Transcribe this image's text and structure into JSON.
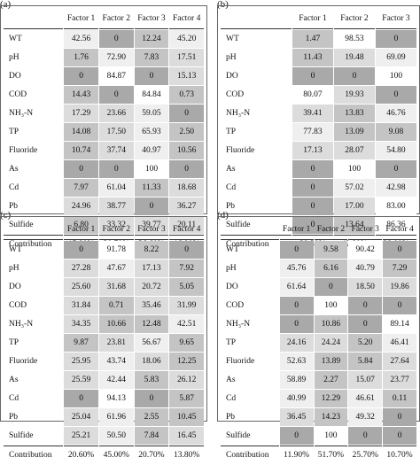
{
  "chart_data": [
    {
      "type": "table",
      "panel_label": "(a)",
      "columns": [
        "Factor 1",
        "Factor 2",
        "Factor 3",
        "Factor 4"
      ],
      "rows": [
        {
          "label": "WT",
          "values": [
            "42.56",
            "0",
            "12.24",
            "45.20"
          ]
        },
        {
          "label": "pH",
          "values": [
            "1.76",
            "72.90",
            "7.83",
            "17.51"
          ]
        },
        {
          "label": "DO",
          "values": [
            "0",
            "84.87",
            "0",
            "15.13"
          ]
        },
        {
          "label": "COD",
          "values": [
            "14.43",
            "0",
            "84.84",
            "0.73"
          ]
        },
        {
          "label": "NH₃-N",
          "values": [
            "17.29",
            "23.66",
            "59.05",
            "0"
          ]
        },
        {
          "label": "TP",
          "values": [
            "14.08",
            "17.50",
            "65.93",
            "2.50"
          ]
        },
        {
          "label": "Fluoride",
          "values": [
            "10.74",
            "37.74",
            "40.97",
            "10.56"
          ]
        },
        {
          "label": "As",
          "values": [
            "0",
            "0",
            "100",
            "0"
          ]
        },
        {
          "label": "Cd",
          "values": [
            "7.97",
            "61.04",
            "11.33",
            "18.68"
          ]
        },
        {
          "label": "Pb",
          "values": [
            "24.96",
            "38.77",
            "0",
            "36.27"
          ]
        },
        {
          "label": "Sulfide",
          "values": [
            "6.80",
            "33.32",
            "39.77",
            "20.11"
          ]
        }
      ],
      "contribution": {
        "label": "Contribution",
        "values": [
          "15.80%",
          "30.70%",
          "36.60%",
          "16.90%"
        ]
      }
    },
    {
      "type": "table",
      "panel_label": "(b)",
      "columns": [
        "Factor 1",
        "Factor 2",
        "Factor 3"
      ],
      "rows": [
        {
          "label": "WT",
          "values": [
            "1.47",
            "98.53",
            "0"
          ]
        },
        {
          "label": "pH",
          "values": [
            "11.43",
            "19.48",
            "69.09"
          ]
        },
        {
          "label": "DO",
          "values": [
            "0",
            "0",
            "100"
          ]
        },
        {
          "label": "COD",
          "values": [
            "80.07",
            "19.93",
            "0"
          ]
        },
        {
          "label": "NH₃-N",
          "values": [
            "39.41",
            "13.83",
            "46.76"
          ]
        },
        {
          "label": "TP",
          "values": [
            "77.83",
            "13.09",
            "9.08"
          ]
        },
        {
          "label": "Fluoride",
          "values": [
            "17.13",
            "28.07",
            "54.80"
          ]
        },
        {
          "label": "As",
          "values": [
            "0",
            "100",
            "0"
          ]
        },
        {
          "label": "Cd",
          "values": [
            "0",
            "57.02",
            "42.98"
          ]
        },
        {
          "label": "Pb",
          "values": [
            "0",
            "17.00",
            "83.00"
          ]
        },
        {
          "label": "Sulfide",
          "values": [
            "0",
            "13.64",
            "86.36"
          ]
        }
      ],
      "contribution": {
        "label": "Contribution",
        "values": [
          "29.30%",
          "42.80%",
          "28.00%"
        ]
      }
    },
    {
      "type": "table",
      "panel_label": "(c)",
      "columns": [
        "Factor 1",
        "Factor 2",
        "Factor 3",
        "Factor 4"
      ],
      "rows": [
        {
          "label": "WT",
          "values": [
            "0",
            "91.78",
            "8.22",
            "0"
          ]
        },
        {
          "label": "pH",
          "values": [
            "27.28",
            "47.67",
            "17.13",
            "7.92"
          ]
        },
        {
          "label": "DO",
          "values": [
            "25.60",
            "31.68",
            "20.72",
            "5.05"
          ]
        },
        {
          "label": "COD",
          "values": [
            "31.84",
            "0.71",
            "35.46",
            "31.99"
          ]
        },
        {
          "label": "NH₃-N",
          "values": [
            "34.35",
            "10.66",
            "12.48",
            "42.51"
          ]
        },
        {
          "label": "TP",
          "values": [
            "9.87",
            "23.81",
            "56.67",
            "9.65"
          ]
        },
        {
          "label": "Fluoride",
          "values": [
            "25.95",
            "43.74",
            "18.06",
            "12.25"
          ]
        },
        {
          "label": "As",
          "values": [
            "25.59",
            "42.44",
            "5.83",
            "26.12"
          ]
        },
        {
          "label": "Cd",
          "values": [
            "0",
            "94.13",
            "0",
            "5.87"
          ]
        },
        {
          "label": "Pb",
          "values": [
            "25.04",
            "61.96",
            "2.55",
            "10.45"
          ]
        },
        {
          "label": "Sulfide",
          "values": [
            "25.21",
            "50.50",
            "7.84",
            "16.45"
          ]
        }
      ],
      "contribution": {
        "label": "Contribution",
        "values": [
          "20.60%",
          "45.00%",
          "20.70%",
          "13.80%"
        ]
      }
    },
    {
      "type": "table",
      "panel_label": "(d)",
      "columns": [
        "Factor 1",
        "Factor 2",
        "Factor 3",
        "Factor 4"
      ],
      "rows": [
        {
          "label": "WT",
          "values": [
            "0",
            "9.58",
            "90.42",
            "0"
          ]
        },
        {
          "label": "pH",
          "values": [
            "45.76",
            "6.16",
            "40.79",
            "7.29"
          ]
        },
        {
          "label": "DO",
          "values": [
            "61.64",
            "0",
            "18.50",
            "19.86"
          ]
        },
        {
          "label": "COD",
          "values": [
            "0",
            "100",
            "0",
            "0"
          ]
        },
        {
          "label": "NH₃-N",
          "values": [
            "0",
            "10.86",
            "0",
            "89.14"
          ]
        },
        {
          "label": "TP",
          "values": [
            "24.16",
            "24.24",
            "5.20",
            "46.41"
          ]
        },
        {
          "label": "Fluoride",
          "values": [
            "52.63",
            "13.89",
            "5.84",
            "27.64"
          ]
        },
        {
          "label": "As",
          "values": [
            "58.89",
            "2.27",
            "15.07",
            "23.77"
          ]
        },
        {
          "label": "Cd",
          "values": [
            "40.99",
            "12.29",
            "46.61",
            "0.11"
          ]
        },
        {
          "label": "Pb",
          "values": [
            "36.45",
            "14.23",
            "49.32",
            "0"
          ]
        },
        {
          "label": "Sulfide",
          "values": [
            "0",
            "100",
            "0",
            "0"
          ]
        }
      ],
      "contribution": {
        "label": "Contribution",
        "values": [
          "11.90%",
          "51.70%",
          "25.70%",
          "10.70%"
        ]
      }
    }
  ],
  "colors": {
    "shade_0": "#ffffff",
    "shade_1": "#efefef",
    "shade_2": "#dcdcdc",
    "shade_3": "#c4c4c4",
    "shade_4": "#a9a9a9",
    "border": "#666666"
  }
}
